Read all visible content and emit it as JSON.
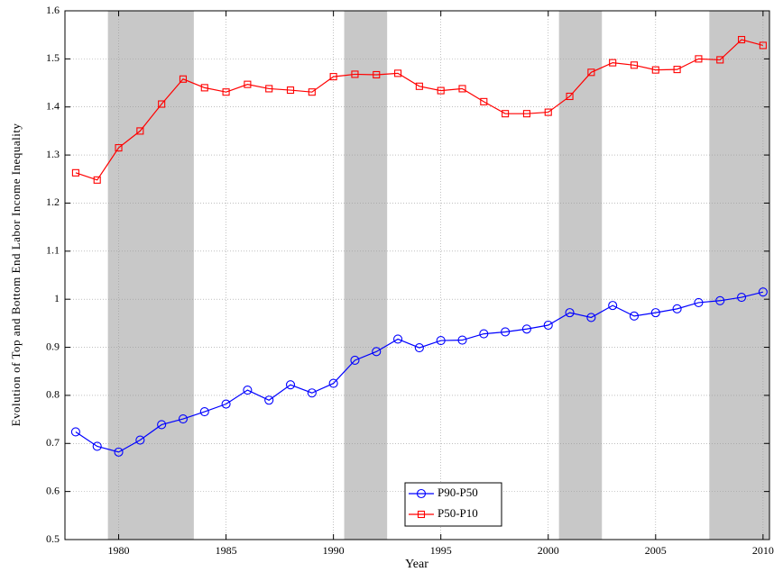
{
  "chart_data": {
    "type": "line",
    "xlabel": "Year",
    "ylabel": "Evolution of Top and Bottom End Labor Income Inequality",
    "x": [
      1978,
      1979,
      1980,
      1981,
      1982,
      1983,
      1984,
      1985,
      1986,
      1987,
      1988,
      1989,
      1990,
      1991,
      1992,
      1993,
      1994,
      1995,
      1996,
      1997,
      1998,
      1999,
      2000,
      2001,
      2002,
      2003,
      2004,
      2005,
      2006,
      2007,
      2008,
      2009,
      2010
    ],
    "series": [
      {
        "name": "P90-P50",
        "color": "#0000ff",
        "marker": "circle",
        "values": [
          0.724,
          0.694,
          0.682,
          0.707,
          0.739,
          0.751,
          0.766,
          0.782,
          0.811,
          0.79,
          0.822,
          0.805,
          0.825,
          0.873,
          0.891,
          0.917,
          0.899,
          0.914,
          0.915,
          0.928,
          0.932,
          0.938,
          0.946,
          0.972,
          0.962,
          0.987,
          0.965,
          0.972,
          0.98,
          0.993,
          0.997,
          1.004,
          1.015
        ]
      },
      {
        "name": "P50-P10",
        "color": "#ff0000",
        "marker": "square",
        "values": [
          1.263,
          1.248,
          1.315,
          1.35,
          1.406,
          1.458,
          1.44,
          1.431,
          1.447,
          1.438,
          1.435,
          1.431,
          1.463,
          1.468,
          1.467,
          1.47,
          1.443,
          1.434,
          1.438,
          1.411,
          1.386,
          1.386,
          1.389,
          1.422,
          1.472,
          1.492,
          1.487,
          1.477,
          1.478,
          1.5,
          1.498,
          1.54,
          1.528
        ]
      }
    ],
    "shaded_ranges": [
      [
        1979.5,
        1983.5
      ],
      [
        1990.5,
        1992.5
      ],
      [
        2000.5,
        2002.5
      ],
      [
        2007.5,
        2010.3
      ]
    ],
    "shade_color": "#c8c8c8",
    "xlim": [
      1977.5,
      2010.3
    ],
    "xticks": [
      1980,
      1985,
      1990,
      1995,
      2000,
      2005,
      2010
    ],
    "ylim": [
      0.5,
      1.6
    ],
    "yticks": [
      0.5,
      0.6,
      0.7,
      0.8,
      0.9,
      1,
      1.1,
      1.2,
      1.3,
      1.4,
      1.5,
      1.6
    ],
    "grid": true,
    "legend": "lower center"
  }
}
